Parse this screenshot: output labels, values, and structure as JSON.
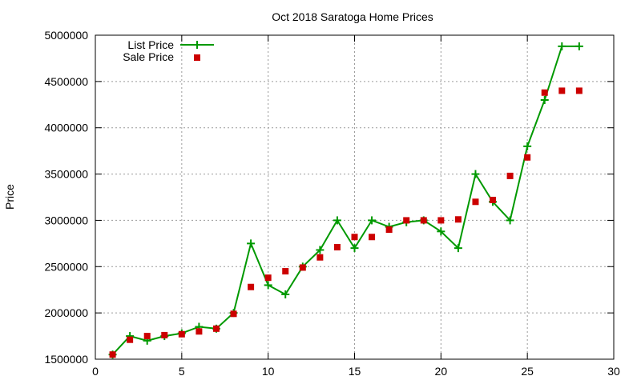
{
  "chart_data": {
    "type": "line",
    "title": "Oct 2018 Saratoga Home Prices",
    "xlabel": "",
    "ylabel": "Price",
    "xlim": [
      0,
      30
    ],
    "ylim": [
      1500000,
      5000000
    ],
    "x_ticks": [
      0,
      5,
      10,
      15,
      20,
      25,
      30
    ],
    "y_ticks": [
      1500000,
      2000000,
      2500000,
      3000000,
      3500000,
      4000000,
      4500000,
      5000000
    ],
    "grid": true,
    "legend_position": "top-left",
    "series": [
      {
        "name": "List Price",
        "style": "line-with-plus-markers",
        "color": "#009900",
        "x": [
          1,
          2,
          3,
          4,
          5,
          6,
          7,
          8,
          9,
          10,
          11,
          12,
          13,
          14,
          15,
          16,
          17,
          18,
          19,
          20,
          21,
          22,
          23,
          24,
          25,
          26,
          27,
          28
        ],
        "y": [
          1550000,
          1750000,
          1700000,
          1750000,
          1780000,
          1850000,
          1830000,
          2000000,
          2750000,
          2300000,
          2200000,
          2500000,
          2680000,
          3000000,
          2700000,
          3000000,
          2930000,
          2980000,
          3000000,
          2880000,
          2700000,
          3500000,
          3200000,
          3000000,
          3800000,
          4300000,
          4880000,
          4880000
        ]
      },
      {
        "name": "Sale Price",
        "style": "square-markers",
        "color": "#cc0000",
        "x": [
          1,
          2,
          3,
          4,
          5,
          6,
          7,
          8,
          9,
          10,
          11,
          12,
          13,
          14,
          15,
          16,
          17,
          18,
          19,
          20,
          21,
          22,
          23,
          24,
          25,
          26,
          27,
          28
        ],
        "y": [
          1550000,
          1710000,
          1750000,
          1760000,
          1770000,
          1800000,
          1830000,
          1990000,
          2280000,
          2380000,
          2450000,
          2490000,
          2600000,
          2710000,
          2820000,
          2820000,
          2900000,
          3000000,
          3000000,
          3000000,
          3010000,
          3200000,
          3220000,
          3480000,
          3680000,
          4380000,
          4400000,
          4400000
        ]
      }
    ]
  }
}
